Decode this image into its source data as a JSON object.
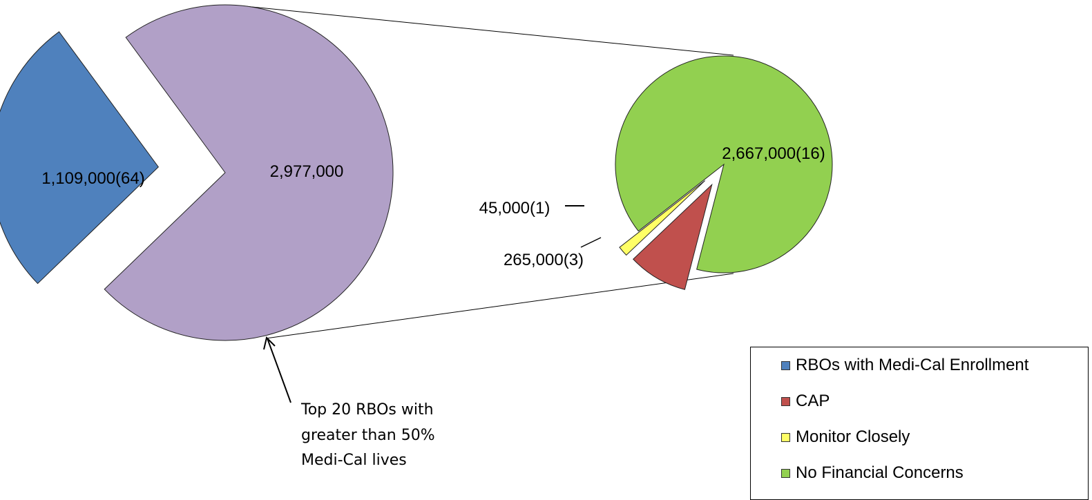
{
  "chart_data": {
    "type": "pie",
    "main_pie": {
      "slices": [
        {
          "name": "RBOs with Medi-Cal Enrollment",
          "value": 1109000,
          "count": 64,
          "label": "1,109,000(64)",
          "color": "#4f81bd"
        },
        {
          "name": "Top 20 RBOs with greater than 50% Medi-Cal lives",
          "value": 2977000,
          "label": "2,977,000",
          "color": "#b1a0c7"
        }
      ]
    },
    "breakdown_pie": {
      "slices": [
        {
          "name": "No Financial Concerns",
          "value": 2667000,
          "count": 16,
          "label": "2,667,000(16)",
          "color": "#92d050"
        },
        {
          "name": "CAP",
          "value": 265000,
          "count": 3,
          "label": "265,000(3)",
          "color": "#c0504d"
        },
        {
          "name": "Monitor Closely",
          "value": 45000,
          "count": 1,
          "label": "45,000(1)",
          "color": "#ffff66"
        }
      ]
    },
    "annotation": [
      "Top 20 RBOs with",
      "greater than 50%",
      "Medi-Cal lives"
    ],
    "legend": {
      "placement": "bottom-right",
      "entries": [
        {
          "label": "RBOs with Medi-Cal Enrollment",
          "color": "#4f81bd"
        },
        {
          "label": "CAP",
          "color": "#c0504d"
        },
        {
          "label": "Monitor Closely",
          "color": "#ffff66"
        },
        {
          "label": "No Financial Concerns",
          "color": "#92d050"
        }
      ]
    }
  }
}
